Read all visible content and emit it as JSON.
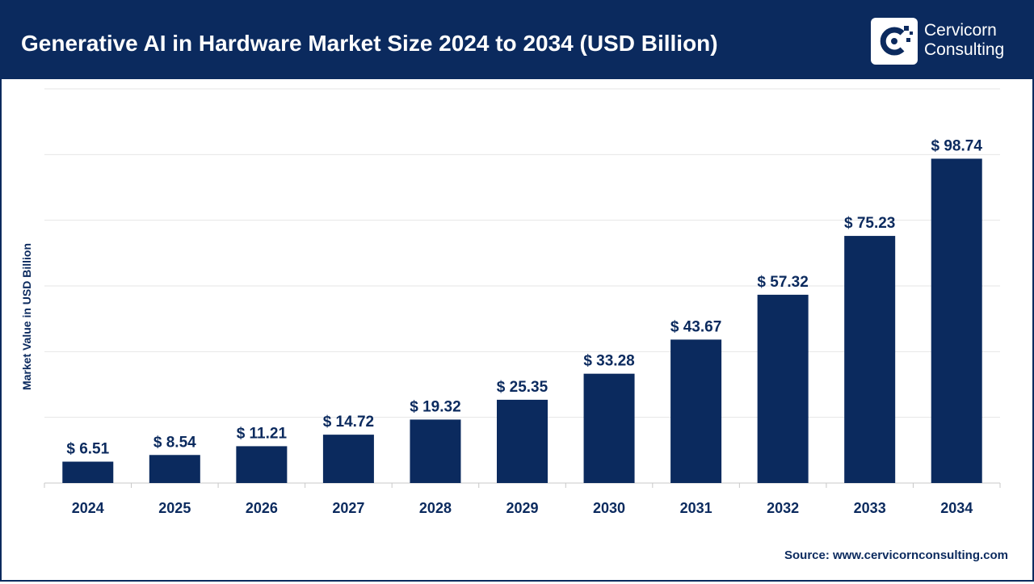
{
  "header": {
    "title": "Generative AI in Hardware Market Size 2024 to 2034 (USD Billion)",
    "logo_line1": "Cervicorn",
    "logo_line2": "Consulting"
  },
  "colors": {
    "brand_navy": "#0b2a5e",
    "bar": "#0b2a5e",
    "grid": "#e6e6e6",
    "background": "#ffffff"
  },
  "source": "Source: www.cervicornconsulting.com",
  "chart_data": {
    "type": "bar",
    "title": "Generative AI in Hardware Market Size 2024 to 2034 (USD Billion)",
    "xlabel": "",
    "ylabel": "Market Value in USD Billion",
    "categories": [
      "2024",
      "2025",
      "2026",
      "2027",
      "2028",
      "2029",
      "2030",
      "2031",
      "2032",
      "2033",
      "2034"
    ],
    "values": [
      6.51,
      8.54,
      11.21,
      14.72,
      19.32,
      25.35,
      33.28,
      43.67,
      57.32,
      75.23,
      98.74
    ],
    "data_labels": [
      "$ 6.51",
      "$ 8.54",
      "$ 11.21",
      "$ 14.72",
      "$ 19.32",
      "$ 25.35",
      "$ 33.28",
      "$ 43.67",
      "$ 57.32",
      "$ 75.23",
      "$ 98.74"
    ],
    "ylim": [
      0,
      120
    ],
    "y_tick_values": [
      0,
      20,
      40,
      60,
      80,
      100,
      120
    ],
    "y_tick_labels_shown": false,
    "grid": true,
    "legend": "none"
  }
}
